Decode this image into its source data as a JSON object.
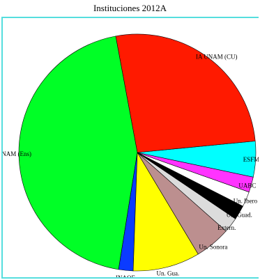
{
  "chart_data": {
    "type": "pie",
    "title": "Instituciones 2012A",
    "start_angle_deg": 348,
    "direction": "counterclockwise",
    "slices": [
      {
        "label": "ESFM-IPN",
        "value": 4.7,
        "color": "#00ffff"
      },
      {
        "label": "IA UNAM (CU)",
        "value": 25.4,
        "color": "#ff1a00"
      },
      {
        "label": "IA UNAM (Ens)",
        "value": 42.9,
        "color": "#00ff26"
      },
      {
        "label": "INAOE",
        "value": 1.9,
        "color": "#0b3bff"
      },
      {
        "label": "Un. Gua.",
        "value": 8.8,
        "color": "#ffff00"
      },
      {
        "label": "Un. Sonora",
        "value": 4.7,
        "color": "#bc8f8f"
      },
      {
        "label": "Extern.",
        "value": 2.0,
        "color": "#dcdcdc"
      },
      {
        "label": "Un. Guad.",
        "value": 1.9,
        "color": "#000000"
      },
      {
        "label": "Un. Ibero",
        "value": 2.0,
        "color": "#ffffff"
      },
      {
        "label": "UABC",
        "value": 2.0,
        "color": "#ff33ff"
      }
    ]
  }
}
